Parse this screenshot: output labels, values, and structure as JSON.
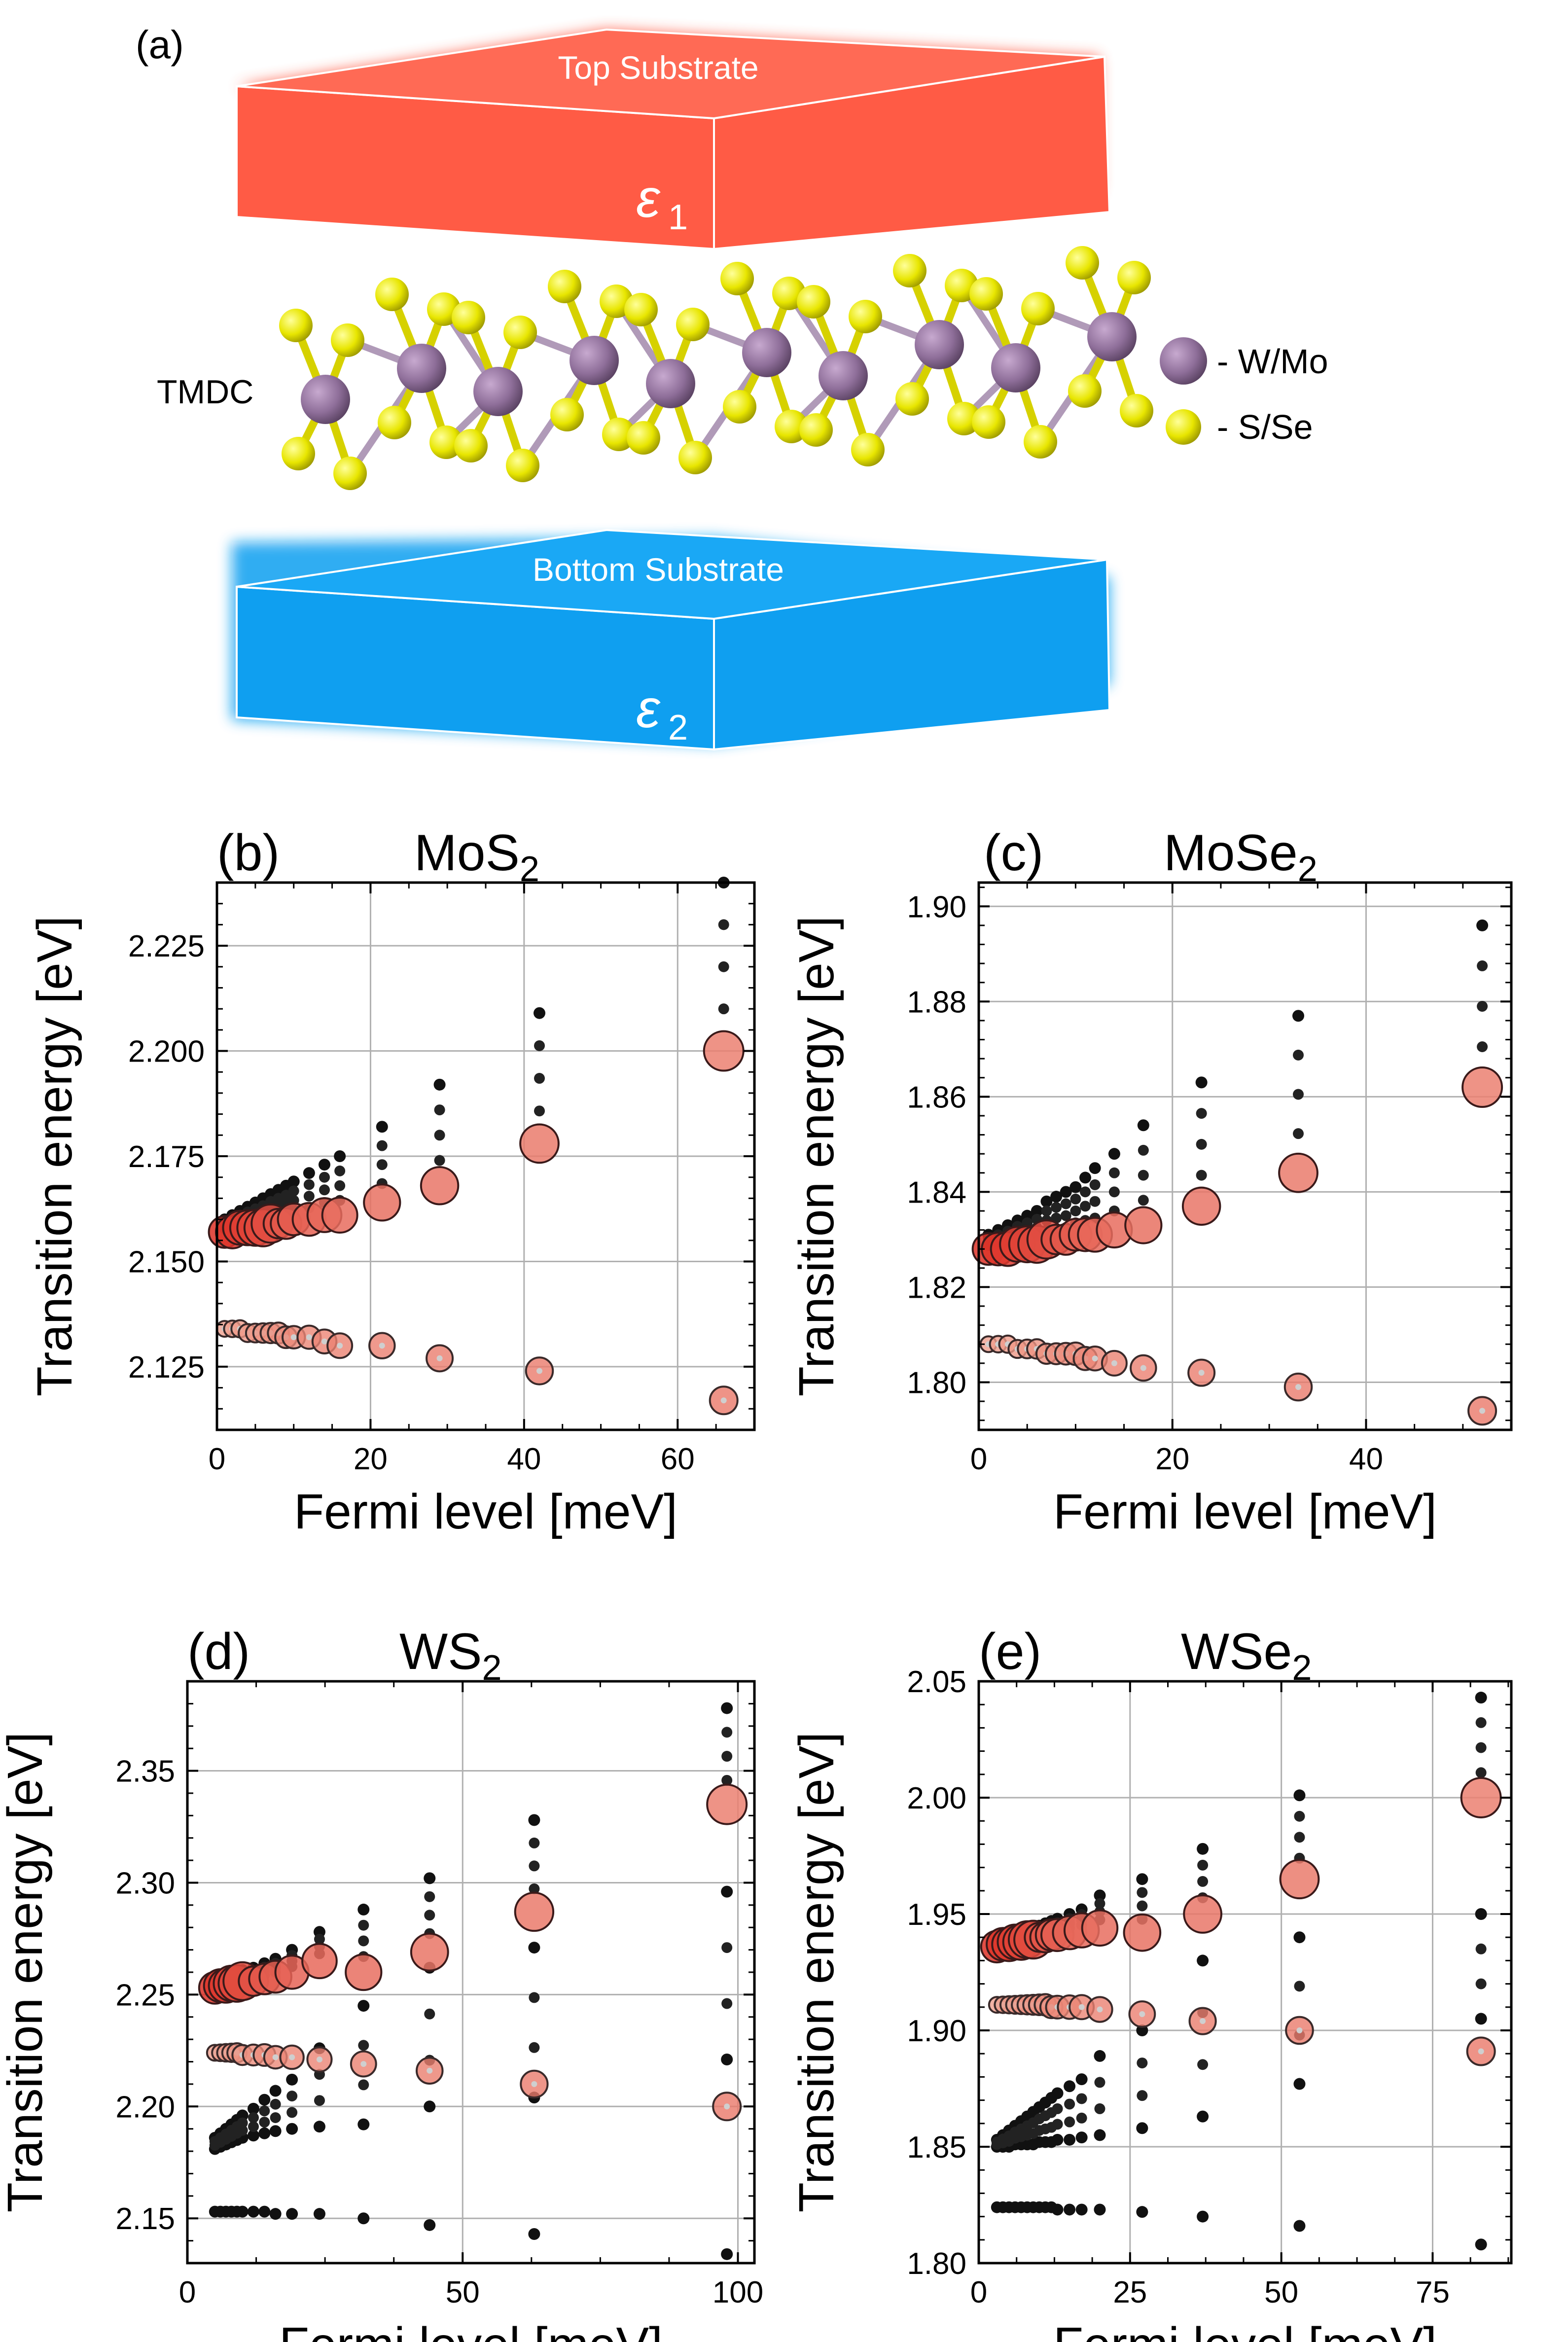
{
  "figure": {
    "panel_a": {
      "label": "(a)",
      "top_substrate": "Top Substrate",
      "bottom_substrate": "Bottom Substrate",
      "eps_top": "ε",
      "eps_top_sub": "1",
      "eps_bottom": "ε",
      "eps_bottom_sub": "2",
      "tmdc_label": "TMDC",
      "legend_metal": "- W/Mo",
      "legend_chalcogen": "- S/Se",
      "colors": {
        "top": "#ff5b45",
        "bottom": "#0f9ff0",
        "metal": "#8f6f9a",
        "chalcogen": "#e8e600"
      }
    }
  },
  "chart_data": [
    {
      "panel": "(b)",
      "type": "scatter",
      "title": "MoS",
      "title_sub": "2",
      "xlabel": "Fermi level [meV]",
      "ylabel": "Transition energy [eV]",
      "xlim": [
        0,
        70
      ],
      "ylim": [
        2.11,
        2.24
      ],
      "xticks": [
        0,
        20,
        40,
        60
      ],
      "yticks": [
        2.125,
        2.15,
        2.175,
        2.2,
        2.225
      ],
      "xtick_labels": [
        "0",
        "20",
        "40",
        "60"
      ],
      "ytick_labels": [
        "2.125",
        "2.150",
        "2.175",
        "2.200",
        "2.225"
      ],
      "fermi_levels": [
        1,
        2,
        3,
        4,
        5,
        6,
        7,
        8,
        9,
        10,
        12,
        14,
        16,
        21.5,
        29,
        42,
        66
      ],
      "main_branch": [
        2.157,
        2.157,
        2.158,
        2.158,
        2.158,
        2.158,
        2.159,
        2.159,
        2.159,
        2.16,
        2.16,
        2.161,
        2.161,
        2.164,
        2.168,
        2.178,
        2.2
      ],
      "lower_branch": [
        2.134,
        2.134,
        2.134,
        2.133,
        2.133,
        2.133,
        2.133,
        2.133,
        2.132,
        2.132,
        2.132,
        2.131,
        2.13,
        2.13,
        2.127,
        2.124,
        2.117
      ],
      "top_spread": [
        2.16,
        2.161,
        2.162,
        2.163,
        2.164,
        2.165,
        2.166,
        2.167,
        2.168,
        2.169,
        2.171,
        2.173,
        2.175,
        2.182,
        2.192,
        2.209,
        2.24
      ]
    },
    {
      "panel": "(c)",
      "type": "scatter",
      "title": "MoSe",
      "title_sub": "2",
      "xlabel": "Fermi level [meV]",
      "ylabel": "Transition energy [eV]",
      "xlim": [
        0,
        55
      ],
      "ylim": [
        1.79,
        1.905
      ],
      "xticks": [
        0,
        20,
        40
      ],
      "yticks": [
        1.8,
        1.82,
        1.84,
        1.86,
        1.88,
        1.9
      ],
      "xtick_labels": [
        "0",
        "20",
        "40"
      ],
      "ytick_labels": [
        "1.80",
        "1.82",
        "1.84",
        "1.86",
        "1.88",
        "1.90"
      ],
      "fermi_levels": [
        1,
        2,
        3,
        4,
        5,
        6,
        7,
        8,
        9,
        10,
        11,
        12,
        14,
        17,
        23,
        33,
        52
      ],
      "main_branch": [
        1.828,
        1.828,
        1.828,
        1.829,
        1.829,
        1.829,
        1.83,
        1.83,
        1.83,
        1.831,
        1.831,
        1.831,
        1.832,
        1.833,
        1.837,
        1.844,
        1.862
      ],
      "lower_branch": [
        1.808,
        1.808,
        1.808,
        1.807,
        1.807,
        1.807,
        1.806,
        1.806,
        1.806,
        1.806,
        1.805,
        1.805,
        1.804,
        1.803,
        1.802,
        1.799,
        1.794
      ],
      "top_spread": [
        1.831,
        1.832,
        1.833,
        1.834,
        1.835,
        1.836,
        1.838,
        1.839,
        1.84,
        1.841,
        1.843,
        1.845,
        1.848,
        1.854,
        1.863,
        1.877,
        1.896
      ]
    },
    {
      "panel": "(d)",
      "type": "scatter",
      "title": "WS",
      "title_sub": "2",
      "xlabel": "Fermi level [meV]",
      "ylabel": "Transition energy [eV]",
      "xlim": [
        0,
        103
      ],
      "ylim": [
        2.13,
        2.39
      ],
      "xticks": [
        0,
        50,
        100
      ],
      "yticks": [
        2.15,
        2.2,
        2.25,
        2.3,
        2.35
      ],
      "xtick_labels": [
        "0",
        "50",
        "100"
      ],
      "ytick_labels": [
        "2.15",
        "2.20",
        "2.25",
        "2.30",
        "2.35"
      ],
      "fermi_levels": [
        5,
        6,
        7,
        8,
        9,
        10,
        12,
        14,
        16,
        19,
        24,
        32,
        44,
        63,
        98
      ],
      "main_branch": [
        2.253,
        2.254,
        2.254,
        2.255,
        2.255,
        2.256,
        2.256,
        2.257,
        2.258,
        2.26,
        2.265,
        2.26,
        2.269,
        2.287,
        2.335
      ],
      "lower_branch": [
        2.224,
        2.224,
        2.224,
        2.224,
        2.224,
        2.223,
        2.223,
        2.223,
        2.222,
        2.222,
        2.221,
        2.219,
        2.216,
        2.21,
        2.2
      ],
      "bottom_branch": [
        2.153,
        2.153,
        2.153,
        2.153,
        2.153,
        2.153,
        2.153,
        2.153,
        2.152,
        2.152,
        2.152,
        2.15,
        2.147,
        2.143,
        2.134
      ],
      "middle_spread_low": [
        2.181,
        2.182,
        2.183,
        2.184,
        2.185,
        2.186,
        2.187,
        2.188,
        2.189,
        2.19,
        2.191,
        2.192,
        2.2,
        2.204,
        2.221
      ],
      "middle_spread_high": [
        2.186,
        2.188,
        2.19,
        2.192,
        2.194,
        2.196,
        2.199,
        2.203,
        2.207,
        2.212,
        2.226,
        2.245,
        2.262,
        2.271,
        2.296
      ],
      "top_spread": [
        2.256,
        2.257,
        2.258,
        2.259,
        2.26,
        2.261,
        2.262,
        2.264,
        2.266,
        2.27,
        2.278,
        2.288,
        2.302,
        2.328,
        2.378
      ]
    },
    {
      "panel": "(e)",
      "type": "scatter",
      "title": "WSe",
      "title_sub": "2",
      "xlabel": "Fermi level [meV]",
      "ylabel": "Transition energy [eV]",
      "xlim": [
        0,
        88
      ],
      "ylim": [
        1.8,
        2.05
      ],
      "xticks": [
        0,
        25,
        50,
        75
      ],
      "yticks": [
        1.8,
        1.85,
        1.9,
        1.95,
        2.0,
        2.05
      ],
      "xtick_labels": [
        "0",
        "25",
        "50",
        "75"
      ],
      "ytick_labels": [
        "1.80",
        "1.85",
        "1.90",
        "1.95",
        "2.00",
        "2.05"
      ],
      "fermi_levels": [
        3,
        4,
        5,
        6,
        7,
        8,
        9,
        10,
        11,
        12,
        13,
        15,
        17,
        20,
        27,
        37,
        53,
        83
      ],
      "main_branch": [
        1.936,
        1.937,
        1.937,
        1.938,
        1.938,
        1.939,
        1.939,
        1.94,
        1.94,
        1.941,
        1.941,
        1.942,
        1.943,
        1.944,
        1.942,
        1.95,
        1.965,
        2.0
      ],
      "lower_branch": [
        1.911,
        1.911,
        1.911,
        1.911,
        1.911,
        1.911,
        1.911,
        1.911,
        1.911,
        1.91,
        1.91,
        1.91,
        1.91,
        1.909,
        1.907,
        1.904,
        1.9,
        1.891
      ],
      "bottom_branch": [
        1.824,
        1.824,
        1.824,
        1.824,
        1.824,
        1.824,
        1.824,
        1.824,
        1.824,
        1.824,
        1.823,
        1.823,
        1.823,
        1.823,
        1.822,
        1.82,
        1.816,
        1.808
      ],
      "middle_spread_low": [
        1.85,
        1.85,
        1.85,
        1.851,
        1.851,
        1.851,
        1.851,
        1.852,
        1.852,
        1.852,
        1.853,
        1.853,
        1.854,
        1.855,
        1.858,
        1.863,
        1.877,
        1.905
      ],
      "middle_spread_high": [
        1.853,
        1.855,
        1.857,
        1.859,
        1.861,
        1.863,
        1.865,
        1.867,
        1.869,
        1.871,
        1.873,
        1.876,
        1.879,
        1.889,
        1.9,
        1.93,
        1.94,
        1.95
      ],
      "top_spread": [
        1.938,
        1.939,
        1.94,
        1.941,
        1.942,
        1.943,
        1.944,
        1.945,
        1.946,
        1.947,
        1.948,
        1.95,
        1.952,
        1.958,
        1.965,
        1.978,
        2.001,
        2.043
      ]
    }
  ]
}
